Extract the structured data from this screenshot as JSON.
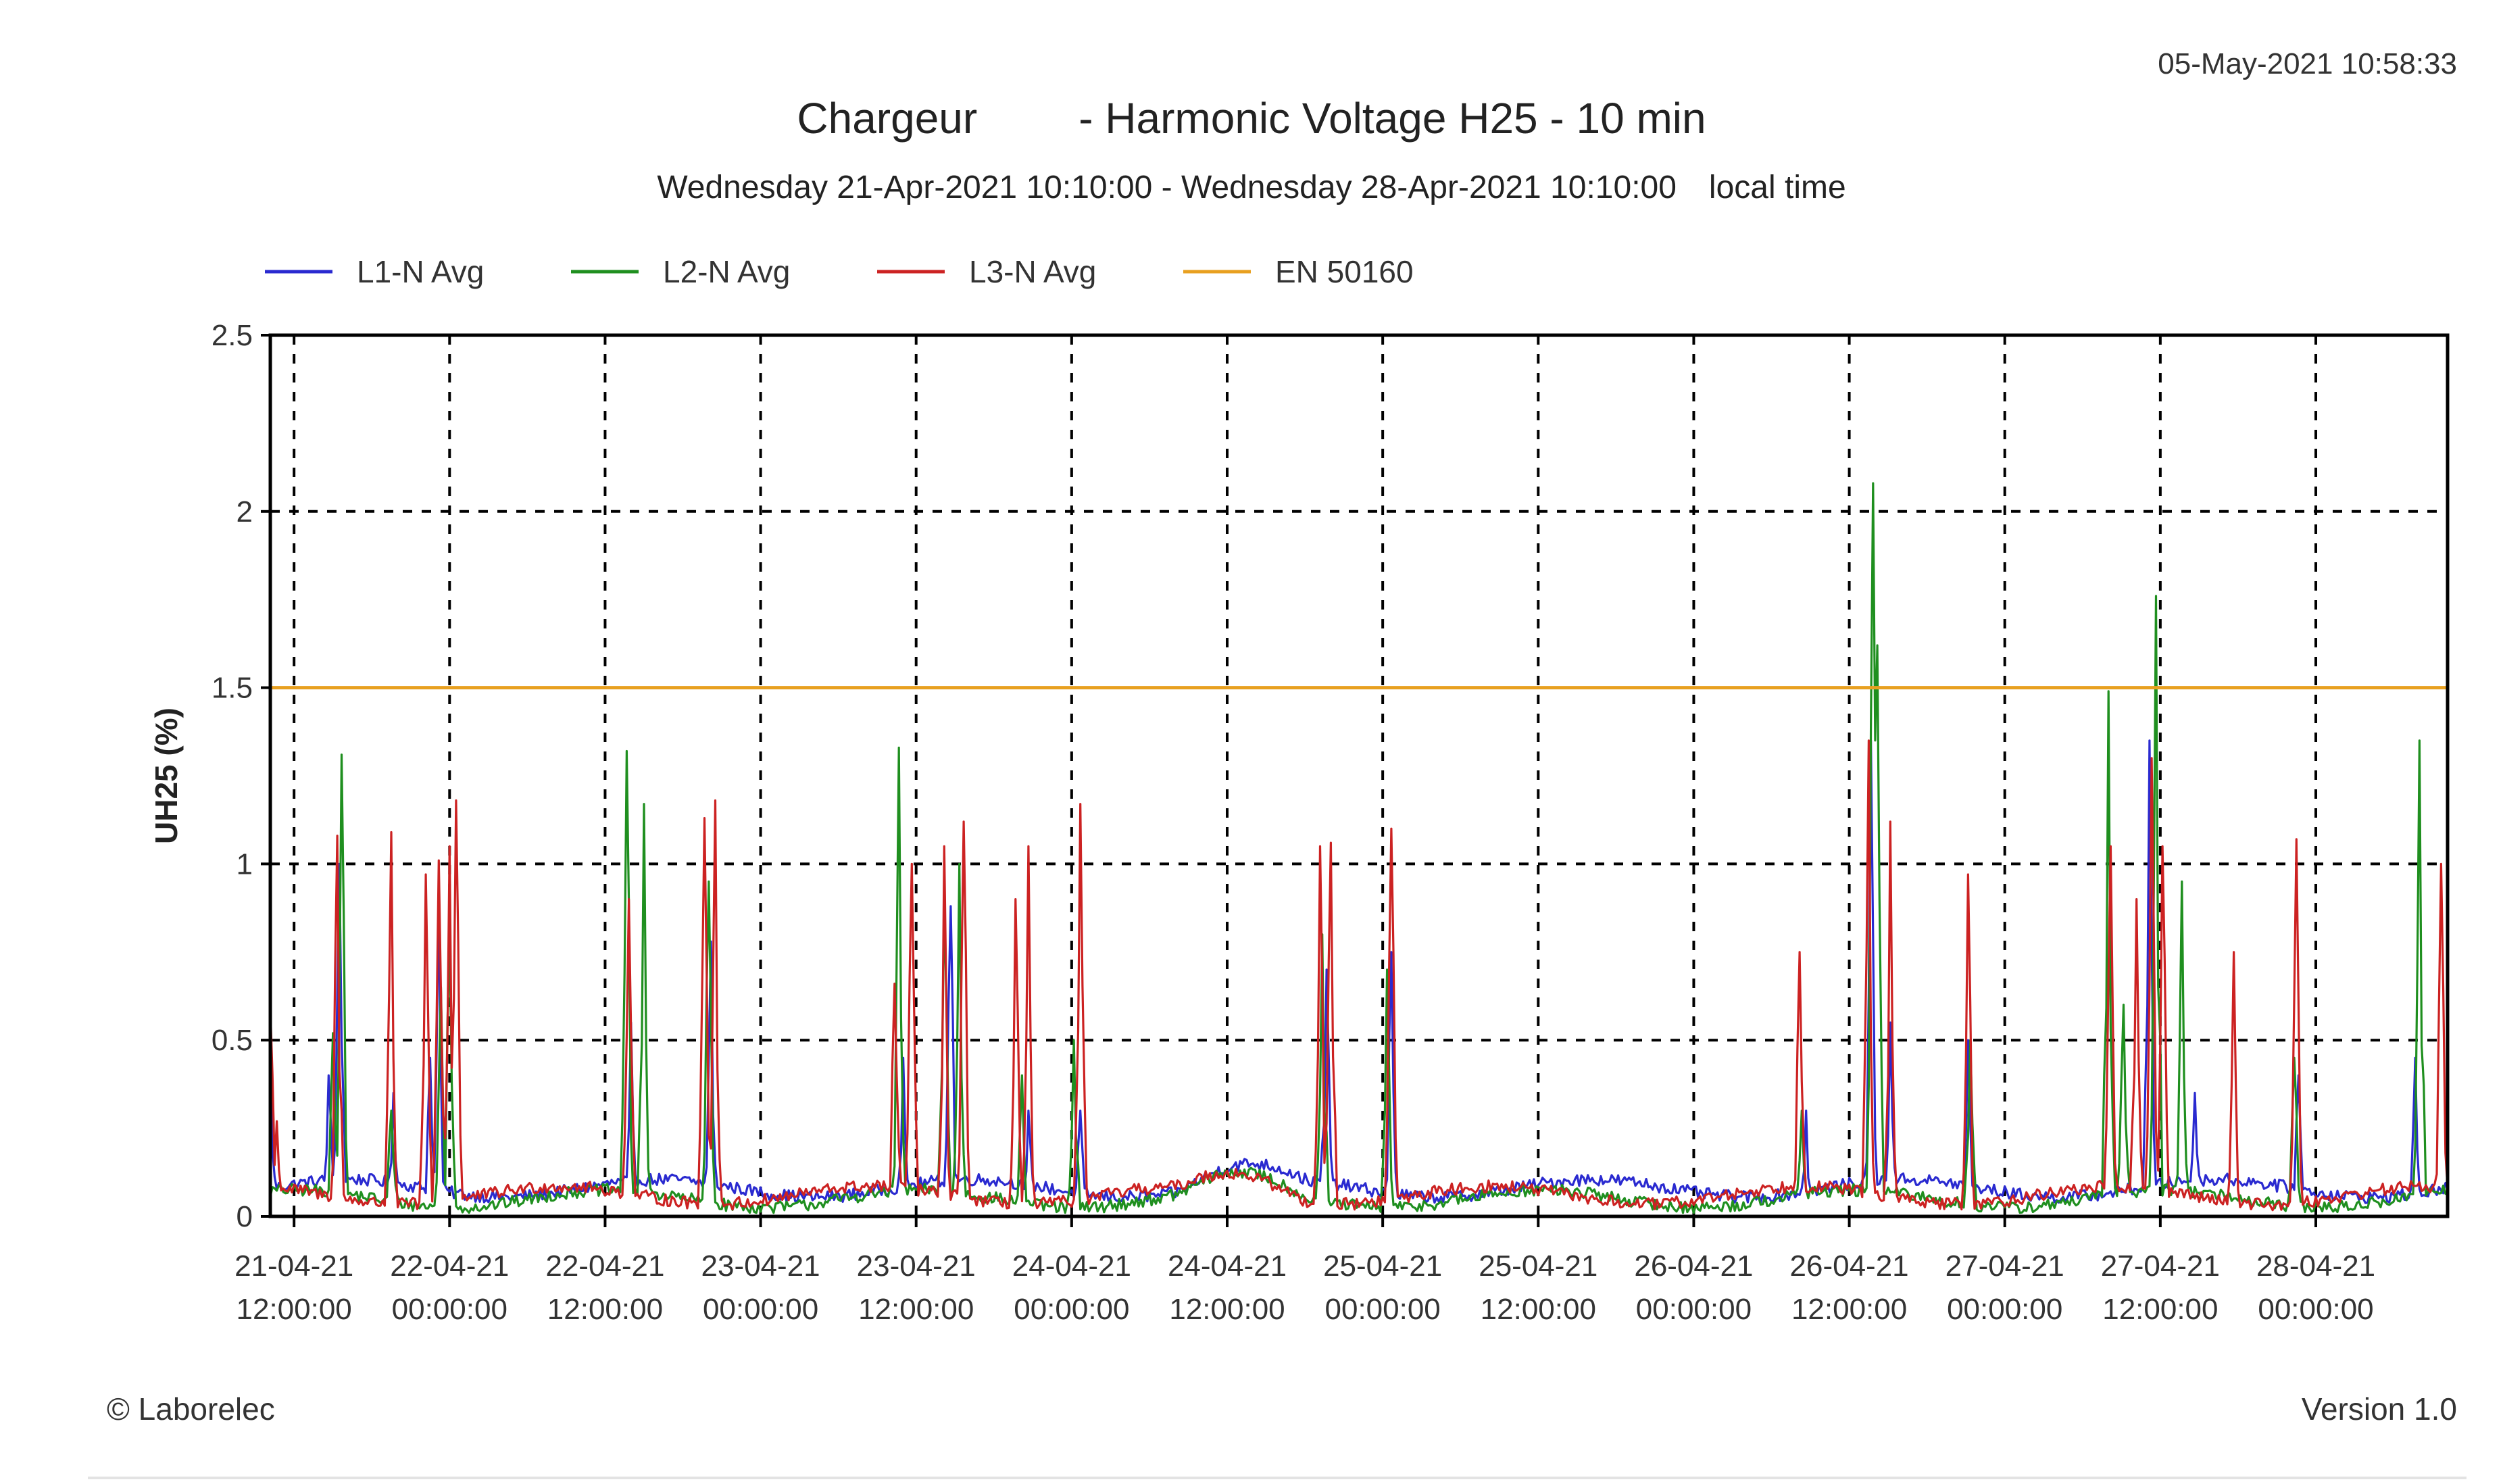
{
  "header": {
    "timestamp": "05-May-2021 10:58:33",
    "title_left": "Chargeur",
    "title_right": "- Harmonic Voltage H25 - 10 min",
    "subtitle": "Wednesday 21-Apr-2021 10:10:00 - Wednesday 28-Apr-2021 10:10:00",
    "subtitle_local": "local time"
  },
  "footer": {
    "left": "© Laborelec",
    "right": "Version 1.0"
  },
  "colors": {
    "L1": "#2a2ad0",
    "L2": "#1f8f1f",
    "L3": "#cc2222",
    "limit": "#e8a020",
    "grid": "#000000",
    "frame": "#000000"
  },
  "chart_data": {
    "type": "line",
    "ylabel": "UH25 (%)",
    "ylim": [
      0,
      2.5
    ],
    "yticks": [
      0,
      0.5,
      1,
      1.5,
      2,
      2.5
    ],
    "ytick_labels": [
      "0",
      "0.5",
      "1",
      "1.5",
      "2",
      "2.5"
    ],
    "xlim_hours": [
      0,
      168
    ],
    "xticks_hours": [
      1.833,
      13.833,
      25.833,
      37.833,
      49.833,
      61.833,
      73.833,
      85.833,
      97.833,
      109.833,
      121.833,
      133.833,
      145.833,
      157.833
    ],
    "xtick_labels": [
      [
        "21-04-21",
        "12:00:00"
      ],
      [
        "22-04-21",
        "00:00:00"
      ],
      [
        "22-04-21",
        "12:00:00"
      ],
      [
        "23-04-21",
        "00:00:00"
      ],
      [
        "23-04-21",
        "12:00:00"
      ],
      [
        "24-04-21",
        "00:00:00"
      ],
      [
        "24-04-21",
        "12:00:00"
      ],
      [
        "25-04-21",
        "00:00:00"
      ],
      [
        "25-04-21",
        "12:00:00"
      ],
      [
        "26-04-21",
        "00:00:00"
      ],
      [
        "26-04-21",
        "12:00:00"
      ],
      [
        "27-04-21",
        "00:00:00"
      ],
      [
        "27-04-21",
        "12:00:00"
      ],
      [
        "28-04-21",
        "00:00:00"
      ]
    ],
    "grid": true,
    "legend_position": "top",
    "limit": {
      "name": "EN 50160",
      "value": 1.5
    },
    "series": [
      {
        "name": "L1-N Avg",
        "baseline": 0.08,
        "spikes": [
          [
            0,
            0.45
          ],
          [
            4.5,
            0.4
          ],
          [
            5.3,
            1.0
          ],
          [
            9.5,
            0.35
          ],
          [
            12.3,
            0.45
          ],
          [
            13.0,
            0.9
          ],
          [
            27.8,
            0.55
          ],
          [
            34.0,
            0.78
          ],
          [
            48.8,
            0.45
          ],
          [
            52.5,
            0.88
          ],
          [
            58.5,
            0.3
          ],
          [
            62.5,
            0.3
          ],
          [
            81.5,
            0.7
          ],
          [
            86.5,
            0.75
          ],
          [
            118.5,
            0.3
          ],
          [
            123.5,
            1.35
          ],
          [
            125.0,
            0.55
          ],
          [
            131.0,
            0.5
          ],
          [
            145.0,
            1.35
          ],
          [
            148.5,
            0.35
          ],
          [
            156.5,
            0.4
          ],
          [
            165.5,
            0.45
          ]
        ]
      },
      {
        "name": "L2-N Avg",
        "baseline": 0.05,
        "spikes": [
          [
            4.8,
            0.52
          ],
          [
            5.5,
            1.31
          ],
          [
            9.3,
            0.3
          ],
          [
            13.2,
            0.65
          ],
          [
            13.8,
            0.8
          ],
          [
            27.5,
            1.32
          ],
          [
            28.8,
            1.17
          ],
          [
            33.8,
            0.95
          ],
          [
            48.5,
            1.33
          ],
          [
            52.0,
            0.9
          ],
          [
            53.2,
            1.0
          ],
          [
            58.0,
            0.4
          ],
          [
            62.0,
            0.5
          ],
          [
            81.2,
            0.8
          ],
          [
            86.2,
            0.7
          ],
          [
            118.2,
            0.3
          ],
          [
            123.6,
            2.08
          ],
          [
            124.0,
            1.62
          ],
          [
            131.2,
            0.5
          ],
          [
            141.8,
            1.49
          ],
          [
            143.0,
            0.6
          ],
          [
            145.5,
            1.76
          ],
          [
            147.5,
            0.95
          ],
          [
            156.2,
            0.45
          ],
          [
            165.8,
            1.35
          ]
        ]
      },
      {
        "name": "L3-N Avg",
        "baseline": 0.06,
        "spikes": [
          [
            0,
            0.59
          ],
          [
            0.5,
            0.27
          ],
          [
            5.2,
            1.08
          ],
          [
            9.4,
            1.09
          ],
          [
            12.0,
            0.97
          ],
          [
            13.0,
            1.01
          ],
          [
            13.8,
            1.05
          ],
          [
            14.4,
            1.18
          ],
          [
            27.7,
            0.9
          ],
          [
            33.5,
            1.13
          ],
          [
            34.3,
            1.18
          ],
          [
            48.2,
            0.66
          ],
          [
            49.5,
            1.0
          ],
          [
            52.0,
            1.05
          ],
          [
            53.5,
            1.12
          ],
          [
            57.5,
            0.9
          ],
          [
            58.5,
            1.05
          ],
          [
            62.5,
            1.17
          ],
          [
            81.0,
            1.05
          ],
          [
            81.8,
            1.06
          ],
          [
            86.5,
            1.1
          ],
          [
            118.0,
            0.75
          ],
          [
            123.4,
            1.35
          ],
          [
            125.0,
            1.12
          ],
          [
            131.0,
            0.97
          ],
          [
            142.0,
            1.05
          ],
          [
            144.0,
            0.9
          ],
          [
            145.2,
            1.3
          ],
          [
            146.0,
            1.05
          ],
          [
            151.5,
            0.75
          ],
          [
            156.3,
            1.07
          ],
          [
            167.5,
            1.0
          ]
        ]
      }
    ]
  }
}
